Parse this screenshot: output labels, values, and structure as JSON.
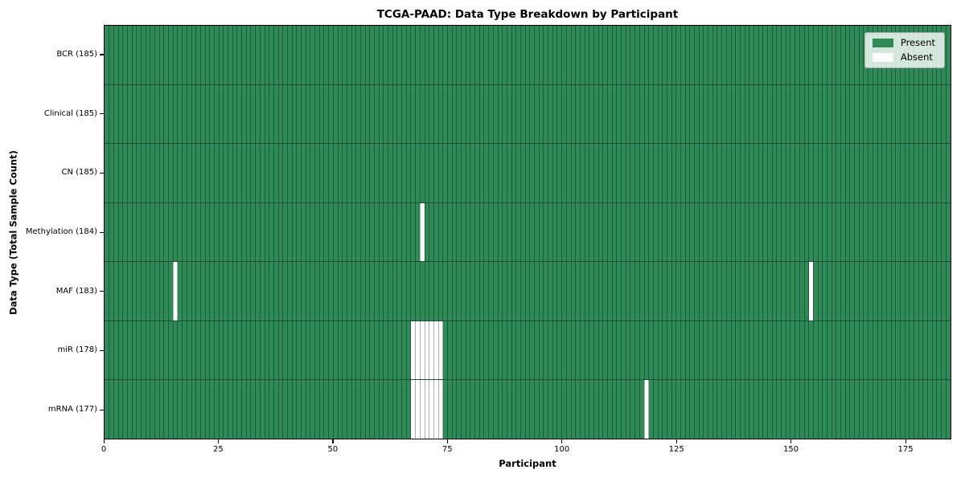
{
  "chart_data": {
    "type": "heatmap",
    "title": "TCGA-PAAD: Data Type Breakdown by Participant",
    "xlabel": "Participant",
    "ylabel": "Data Type (Total Sample Count)",
    "x_range": [
      0,
      185
    ],
    "x_ticks": [
      0,
      25,
      50,
      75,
      100,
      125,
      150,
      175
    ],
    "n_participants": 185,
    "grid": true,
    "legend_position": "top-right",
    "legend": [
      {
        "label": "Present",
        "color": "#2e8b57"
      },
      {
        "label": "Absent",
        "color": "#ffffff"
      }
    ],
    "colors": {
      "present": "#2e8b57",
      "absent": "#ffffff",
      "grid_line": "rgba(0,0,0,0.32)",
      "row_separator": "rgba(0,0,0,0.40)",
      "spine": "#000000"
    },
    "rows": [
      {
        "label": "BCR (185)",
        "data_type": "BCR",
        "present_count": 185,
        "absent_participants": []
      },
      {
        "label": "Clinical (185)",
        "data_type": "Clinical",
        "present_count": 185,
        "absent_participants": []
      },
      {
        "label": "CN (185)",
        "data_type": "CN",
        "present_count": 185,
        "absent_participants": []
      },
      {
        "label": "Methylation (184)",
        "data_type": "Methylation",
        "present_count": 184,
        "absent_participants": [
          69
        ]
      },
      {
        "label": "MAF (183)",
        "data_type": "MAF",
        "present_count": 183,
        "absent_participants": [
          15,
          154
        ]
      },
      {
        "label": "miR (178)",
        "data_type": "miR",
        "present_count": 178,
        "absent_participants": [
          67,
          68,
          69,
          70,
          71,
          72,
          73
        ]
      },
      {
        "label": "mRNA (177)",
        "data_type": "mRNA",
        "present_count": 177,
        "absent_participants": [
          67,
          68,
          69,
          70,
          71,
          72,
          73,
          118
        ]
      }
    ]
  }
}
